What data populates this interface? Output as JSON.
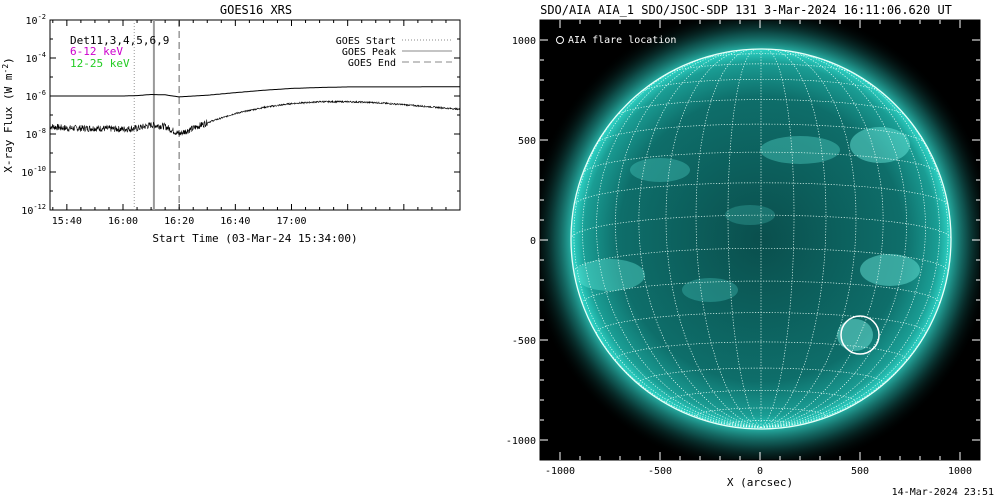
{
  "chart_data": [
    {
      "type": "line",
      "title": "GOES16 XRS",
      "xlabel": "Start Time (03-Mar-24 15:34:00)",
      "ylabel": "X-ray Flux (W m^-2)",
      "x_range": [
        "15:34",
        "18:00"
      ],
      "x_ticks": [
        "15:40",
        "16:00",
        "16:20",
        "16:40",
        "17:00"
      ],
      "ylim": [
        1e-12,
        0.01
      ],
      "y_scale": "log",
      "y_ticks": [
        "10^-2",
        "10^-4",
        "10^-6",
        "10^-8",
        "10^-10",
        "10^-12"
      ],
      "legend_left": {
        "detectors": "Det11,3,4,5,6,9",
        "low_band": "6-12 keV",
        "high_band": "12-25 keV"
      },
      "legend_right": [
        "GOES Start",
        "GOES Peak",
        "GOES End"
      ],
      "markers": {
        "start": "16:04",
        "peak": "16:11",
        "end": "16:20"
      },
      "series": [
        {
          "band": "low",
          "x": [
            "15:34",
            "15:50",
            "16:00",
            "16:05",
            "16:10",
            "16:15",
            "16:20",
            "16:30",
            "16:40",
            "16:50",
            "17:00",
            "17:10",
            "17:20",
            "17:30",
            "17:40",
            "18:00"
          ],
          "values": [
            1e-06,
            1e-06,
            1e-06,
            1.05e-06,
            1.2e-06,
            1.15e-06,
            9e-07,
            1.1e-06,
            1.5e-06,
            2e-06,
            2.5e-06,
            2.8e-06,
            3e-06,
            3e-06,
            3e-06,
            3.1e-06
          ]
        },
        {
          "band": "high",
          "x": [
            "15:34",
            "15:40",
            "15:50",
            "16:00",
            "16:05",
            "16:10",
            "16:15",
            "16:20",
            "16:25",
            "16:30",
            "16:40",
            "16:50",
            "17:00",
            "17:10",
            "17:20",
            "17:30",
            "17:40",
            "18:00"
          ],
          "values": [
            2.5e-08,
            2e-08,
            2e-08,
            1.8e-08,
            2e-08,
            3e-08,
            2.5e-08,
            1e-08,
            2e-08,
            4e-08,
            1.2e-07,
            2.5e-07,
            4e-07,
            5e-07,
            5e-07,
            4.5e-07,
            3.5e-07,
            2e-07
          ]
        }
      ],
      "colors": {
        "low": "#000000",
        "high": "#000000",
        "low_label": "#cc00cc",
        "high_label": "#22cc22"
      }
    },
    {
      "type": "image",
      "title": "SDO/AIA AIA_1 SDO/JSOC-SDP 131  3-Mar-2024 16:11:06.620 UT",
      "xlabel": "X (arcsec)",
      "x_ticks": [
        "-1000",
        "-500",
        "0",
        "500",
        "1000"
      ],
      "y_ticks": [
        "1000",
        "500",
        "0",
        "-500",
        "-1000"
      ],
      "xlim": [
        -1100,
        1100
      ],
      "ylim": [
        -1100,
        1100
      ],
      "legend": "AIA flare location",
      "flare_location": {
        "x": 500,
        "y": -475
      },
      "colors": {
        "disk": "#0e6e6a",
        "limb": "#2fd6c8",
        "grid": "#e8fff8",
        "background": "#000000"
      }
    }
  ],
  "footer": {
    "timestamp": "14-Mar-2024 23:51"
  }
}
